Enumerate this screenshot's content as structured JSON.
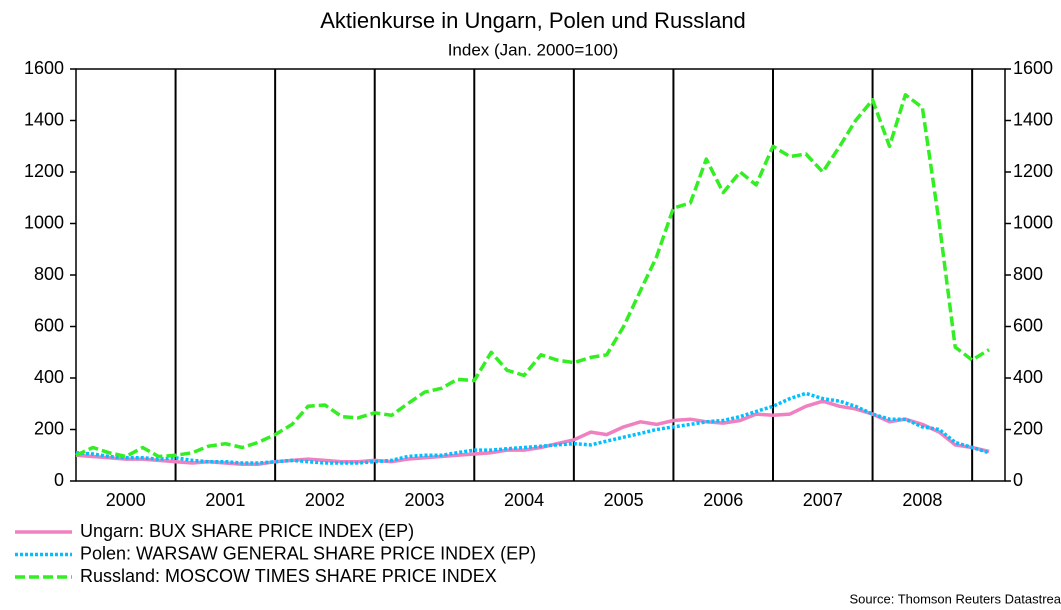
{
  "chart_data": {
    "type": "line",
    "title": "Aktienkurse in Ungarn, Polen und Russland",
    "subtitle": "Index (Jan. 2000=100)",
    "source": "Source: Thomson Reuters Datastrea",
    "x": [
      2000,
      2000.17,
      2000.33,
      2000.5,
      2000.67,
      2000.83,
      2001,
      2001.17,
      2001.33,
      2001.5,
      2001.67,
      2001.83,
      2002,
      2002.17,
      2002.33,
      2002.5,
      2002.67,
      2002.83,
      2003,
      2003.17,
      2003.33,
      2003.5,
      2003.67,
      2003.83,
      2004,
      2004.17,
      2004.33,
      2004.5,
      2004.67,
      2004.83,
      2005,
      2005.17,
      2005.33,
      2005.5,
      2005.67,
      2005.83,
      2006,
      2006.17,
      2006.33,
      2006.5,
      2006.67,
      2006.83,
      2007,
      2007.17,
      2007.33,
      2007.5,
      2007.67,
      2007.83,
      2008,
      2008.17,
      2008.33,
      2008.5,
      2008.67,
      2008.83,
      2009,
      2009.17
    ],
    "series": [
      {
        "name": "Ungarn: BUX SHARE PRICE INDEX (EP)",
        "color": "#f080c0",
        "dash": "solid",
        "values": [
          100,
          95,
          90,
          85,
          85,
          80,
          75,
          70,
          75,
          70,
          65,
          65,
          75,
          80,
          85,
          80,
          75,
          75,
          80,
          75,
          85,
          90,
          95,
          100,
          105,
          110,
          120,
          120,
          130,
          145,
          160,
          190,
          180,
          210,
          230,
          220,
          235,
          240,
          230,
          225,
          235,
          260,
          255,
          260,
          290,
          310,
          290,
          280,
          260,
          230,
          240,
          220,
          190,
          140,
          130,
          115
        ]
      },
      {
        "name": "Polen: WARSAW GENERAL SHARE PRICE INDEX (EP)",
        "color": "#00c0ff",
        "dash": "dotted",
        "values": [
          110,
          105,
          95,
          90,
          90,
          85,
          90,
          80,
          75,
          75,
          70,
          70,
          75,
          80,
          75,
          70,
          70,
          70,
          75,
          80,
          95,
          100,
          100,
          110,
          120,
          120,
          125,
          130,
          135,
          140,
          145,
          140,
          155,
          170,
          185,
          200,
          210,
          220,
          230,
          235,
          250,
          270,
          290,
          320,
          340,
          320,
          310,
          290,
          260,
          240,
          240,
          210,
          200,
          150,
          130,
          110
        ]
      },
      {
        "name": "Russland: MOSCOW TIMES SHARE PRICE INDEX",
        "color": "#33ee22",
        "dash": "dashed",
        "values": [
          100,
          130,
          110,
          95,
          130,
          95,
          100,
          110,
          135,
          145,
          130,
          150,
          180,
          220,
          290,
          295,
          250,
          245,
          265,
          255,
          300,
          345,
          360,
          395,
          390,
          500,
          430,
          410,
          490,
          470,
          460,
          480,
          490,
          600,
          740,
          870,
          1060,
          1080,
          1250,
          1120,
          1200,
          1150,
          1300,
          1260,
          1270,
          1200,
          1300,
          1400,
          1480,
          1300,
          1500,
          1450,
          1000,
          520,
          470,
          510
        ]
      }
    ],
    "xlim": [
      2000,
      2009.33
    ],
    "xticks": [
      {
        "value": 2000.5,
        "label": "2000"
      },
      {
        "value": 2001.5,
        "label": "2001"
      },
      {
        "value": 2002.5,
        "label": "2002"
      },
      {
        "value": 2003.5,
        "label": "2003"
      },
      {
        "value": 2004.5,
        "label": "2004"
      },
      {
        "value": 2005.5,
        "label": "2005"
      },
      {
        "value": 2006.5,
        "label": "2006"
      },
      {
        "value": 2007.5,
        "label": "2007"
      },
      {
        "value": 2008.5,
        "label": "2008"
      }
    ],
    "xgrid": [
      2001,
      2002,
      2003,
      2004,
      2005,
      2006,
      2007,
      2008,
      2009
    ],
    "ylim": [
      0,
      1600
    ],
    "yticks": [
      0,
      200,
      400,
      600,
      800,
      1000,
      1200,
      1400,
      1600
    ],
    "y2lim": [
      0,
      1600
    ],
    "y2ticks": [
      0,
      200,
      400,
      600,
      800,
      1000,
      1200,
      1400,
      1600
    ]
  }
}
